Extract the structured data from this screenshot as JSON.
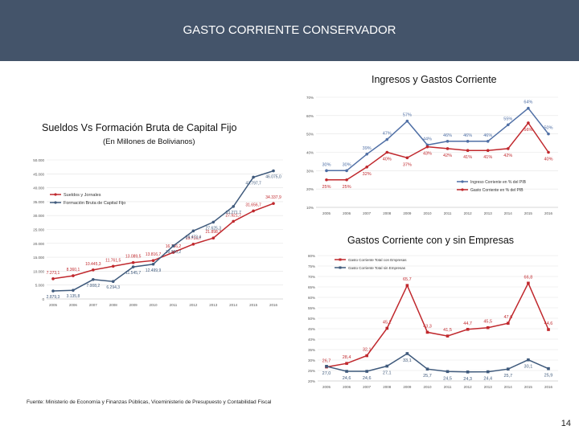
{
  "header": {
    "title": "GASTO CORRIENTE CONSERVADOR"
  },
  "footer": {
    "source": "Fuente: Ministerio de Economía y Finanzas Públicas, Viceministerio de Presupuesto y Contabilidad Fiscal",
    "page_number": "14"
  },
  "colors": {
    "header_bg": "#44546a",
    "blue_series": "#4f6fa5",
    "red_series": "#c0282d",
    "dark_series": "#3f5a7c"
  },
  "chart_data": [
    {
      "id": "sueldos",
      "type": "line",
      "title": "Sueldos Vs Formación Bruta de Capital Fijo",
      "subtitle": "(En Millones de Bolivianos)",
      "categories": [
        "2005",
        "2006",
        "2007",
        "2008",
        "2009",
        "2010",
        "2011",
        "2012",
        "2013",
        "2014",
        "2015",
        "2016"
      ],
      "ylim": [
        0,
        50000
      ],
      "yticks": [
        "0",
        "5.000",
        "10.000",
        "15.000",
        "20.000",
        "25.000",
        "30.000",
        "35.000",
        "40.000",
        "45.000",
        "50.000"
      ],
      "legend": [
        "Sueldos y Jornales",
        "Formación Bruta de Capital Fijo"
      ],
      "series": [
        {
          "name": "Sueldos y Jornales",
          "values": [
            7273.1,
            8360.1,
            10445.3,
            11761.5,
            13089.5,
            13816.7,
            16756.2,
            19716.7,
            21898.7,
            27921.7,
            31656.7,
            34337.9
          ],
          "labels": [
            "7.273,1",
            "8.360,1",
            "10.445,3",
            "11.761,5",
            "13.089,5",
            "13.816,7",
            "16.756,2",
            "19.716,7",
            "21.898,7",
            "27.921,7",
            "31.656,7",
            "34.337,9"
          ]
        },
        {
          "name": "Formación Bruta de Capital Fijo",
          "values": [
            2879.3,
            3135.8,
            7008.2,
            6294.3,
            11545.7,
            12499.9,
            19080.2,
            24473.4,
            27625.3,
            33271.7,
            43797.7,
            46075.0
          ],
          "labels": [
            "2.879,3",
            "3.135,8",
            "7.008,2",
            "6.294,3",
            "11.545,7",
            "12.499,9",
            "19.080,2",
            "24.473,4",
            "27.625,3",
            "33.271,7",
            "43.797,7",
            "46.075,0"
          ]
        }
      ]
    },
    {
      "id": "ingresos",
      "type": "line",
      "title": "Ingresos y Gastos Corriente",
      "categories": [
        "2005",
        "2006",
        "2007",
        "2008",
        "2009",
        "2010",
        "2011",
        "2012",
        "2013",
        "2014",
        "2015",
        "2016"
      ],
      "ylim": [
        10,
        70
      ],
      "yticks": [
        "10%",
        "20%",
        "30%",
        "40%",
        "50%",
        "60%",
        "70%"
      ],
      "legend": [
        "Ingreso Corriente en % del PIB",
        "Gasto Corriente en % del PIB"
      ],
      "series": [
        {
          "name": "Ingreso Corriente en % del PIB",
          "values": [
            30,
            30,
            39,
            47,
            57,
            44,
            46,
            46,
            46,
            55,
            64,
            50
          ],
          "labels": [
            "30%",
            "30%",
            "39%",
            "47%",
            "57%",
            "44%",
            "46%",
            "46%",
            "46%",
            "55%",
            "64%",
            "50%"
          ]
        },
        {
          "name": "Gasto Corriente en % del PIB",
          "values": [
            25,
            25,
            32,
            40,
            37,
            43,
            42,
            41,
            41,
            42,
            56,
            40
          ],
          "labels": [
            "25%",
            "25%",
            "32%",
            "40%",
            "37%",
            "43%",
            "42%",
            "41%",
            "41%",
            "42%",
            "56%",
            "40%"
          ]
        }
      ]
    },
    {
      "id": "gastos_empresas",
      "type": "line",
      "title": "Gastos Corriente con y sin Empresas",
      "categories": [
        "2005",
        "2006",
        "2007",
        "2008",
        "2009",
        "2010",
        "2011",
        "2012",
        "2013",
        "2014",
        "2015",
        "2016"
      ],
      "ylim": [
        20,
        80
      ],
      "yticks": [
        "20%",
        "25%",
        "30%",
        "35%",
        "40%",
        "45%",
        "50%",
        "55%",
        "60%",
        "65%",
        "70%",
        "75%",
        "80%"
      ],
      "legend": [
        "Gasto Corriente Total con Empresas",
        "Gasto Corriente Total sin Empresas"
      ],
      "series": [
        {
          "name": "Gasto Corriente Total con Empresas",
          "values": [
            26.7,
            28.4,
            32.1,
            45.2,
            65.7,
            43.3,
            41.5,
            44.7,
            45.5,
            47.6,
            66.8,
            44.6
          ],
          "labels": [
            "26,7",
            "28,4",
            "32,1",
            "45,2",
            "65,7",
            "43,3",
            "41,5",
            "44,7",
            "45,5",
            "47,6",
            "66,8",
            "44,6"
          ]
        },
        {
          "name": "Gasto Corriente Total sin Empresas",
          "values": [
            27.0,
            24.6,
            24.6,
            27.1,
            33.1,
            25.7,
            24.5,
            24.3,
            24.4,
            25.7,
            30.1,
            25.9
          ],
          "labels": [
            "27,0",
            "24,6",
            "24,6",
            "27,1",
            "33,1",
            "25,7",
            "24,5",
            "24,3",
            "24,4",
            "25,7",
            "30,1",
            "25,9"
          ]
        }
      ]
    }
  ]
}
